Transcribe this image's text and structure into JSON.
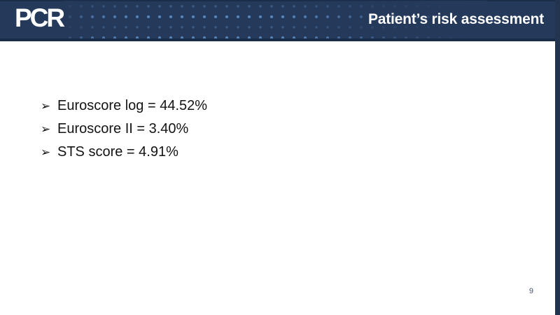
{
  "header": {
    "logo_text": "PCR",
    "title": "Patient’s risk assessment",
    "colors": {
      "header_bg": "#25395a",
      "header_border": "#1b2c47",
      "dot_dim": "#3a5a85",
      "dot_bright": "#5586bd",
      "title_color": "#ffffff",
      "edge_bar": "#22344f"
    }
  },
  "slide": {
    "bullets": [
      {
        "marker": "➢",
        "text": "Euroscore log = 44.52%"
      },
      {
        "marker": "➢",
        "text": "Euroscore II = 3.40%"
      },
      {
        "marker": "➢",
        "text": "STS score = 4.91%"
      }
    ],
    "page_number": "9",
    "text_color": "#141414",
    "page_number_color": "#46526a"
  }
}
